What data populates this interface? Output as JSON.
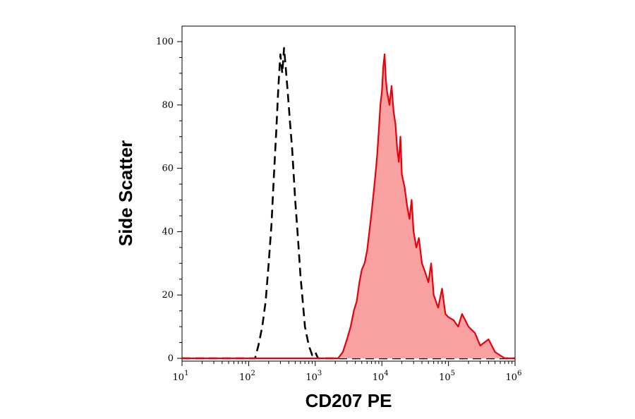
{
  "chart_data": {
    "type": "area",
    "title": "",
    "xlabel": "CD207 PE",
    "ylabel": "Side Scatter",
    "x_scale": "log",
    "xlim": [
      10,
      1000000
    ],
    "ylim": [
      0,
      100
    ],
    "x_ticks": [
      {
        "value": 10,
        "base": "10",
        "exp": "1"
      },
      {
        "value": 100,
        "base": "10",
        "exp": "2"
      },
      {
        "value": 1000,
        "base": "10",
        "exp": "3"
      },
      {
        "value": 10000,
        "base": "10",
        "exp": "4"
      },
      {
        "value": 100000,
        "base": "10",
        "exp": "5"
      },
      {
        "value": 1000000,
        "base": "10",
        "exp": "6"
      }
    ],
    "y_ticks": [
      "0",
      "20",
      "40",
      "60",
      "80",
      "100"
    ],
    "series": [
      {
        "style": "dashed-outline",
        "color": "#000000",
        "x": [
          10,
          80,
          125,
          140,
          160,
          180,
          200,
          220,
          240,
          260,
          280,
          300,
          320,
          340,
          360,
          380,
          400,
          420,
          450,
          500,
          550,
          600,
          650,
          700,
          800,
          900,
          1000,
          1100,
          2000,
          10000,
          1000000
        ],
        "y": [
          0,
          0,
          0,
          4,
          10,
          18,
          30,
          42,
          58,
          72,
          86,
          96,
          90,
          98,
          92,
          86,
          80,
          74,
          66,
          50,
          38,
          26,
          18,
          10,
          4,
          1,
          2,
          0,
          0,
          0,
          0
        ]
      },
      {
        "style": "filled",
        "color": "#e8000a",
        "fill": "#f9a0a0",
        "x": [
          10,
          1000,
          2200,
          2600,
          3000,
          3400,
          3800,
          4200,
          4600,
          5000,
          5500,
          6000,
          6500,
          7000,
          7500,
          8000,
          8500,
          9000,
          9500,
          10000,
          10500,
          11000,
          11500,
          12000,
          13000,
          14000,
          15000,
          16000,
          17000,
          18000,
          19000,
          20000,
          22000,
          24000,
          26000,
          28000,
          30000,
          33000,
          36000,
          40000,
          45000,
          50000,
          55000,
          60000,
          65000,
          70000,
          80000,
          90000,
          100000,
          120000,
          140000,
          160000,
          200000,
          250000,
          300000,
          400000,
          500000,
          700000,
          1000000
        ],
        "y": [
          0,
          0,
          0,
          2,
          6,
          10,
          15,
          18,
          24,
          28,
          30,
          34,
          40,
          46,
          52,
          58,
          64,
          72,
          80,
          84,
          92,
          96,
          88,
          84,
          80,
          86,
          78,
          74,
          66,
          62,
          70,
          58,
          54,
          48,
          44,
          50,
          40,
          35,
          38,
          30,
          27,
          24,
          30,
          20,
          18,
          16,
          22,
          14,
          13,
          12,
          10,
          14,
          10,
          8,
          4,
          6,
          2,
          0,
          0
        ]
      }
    ]
  }
}
